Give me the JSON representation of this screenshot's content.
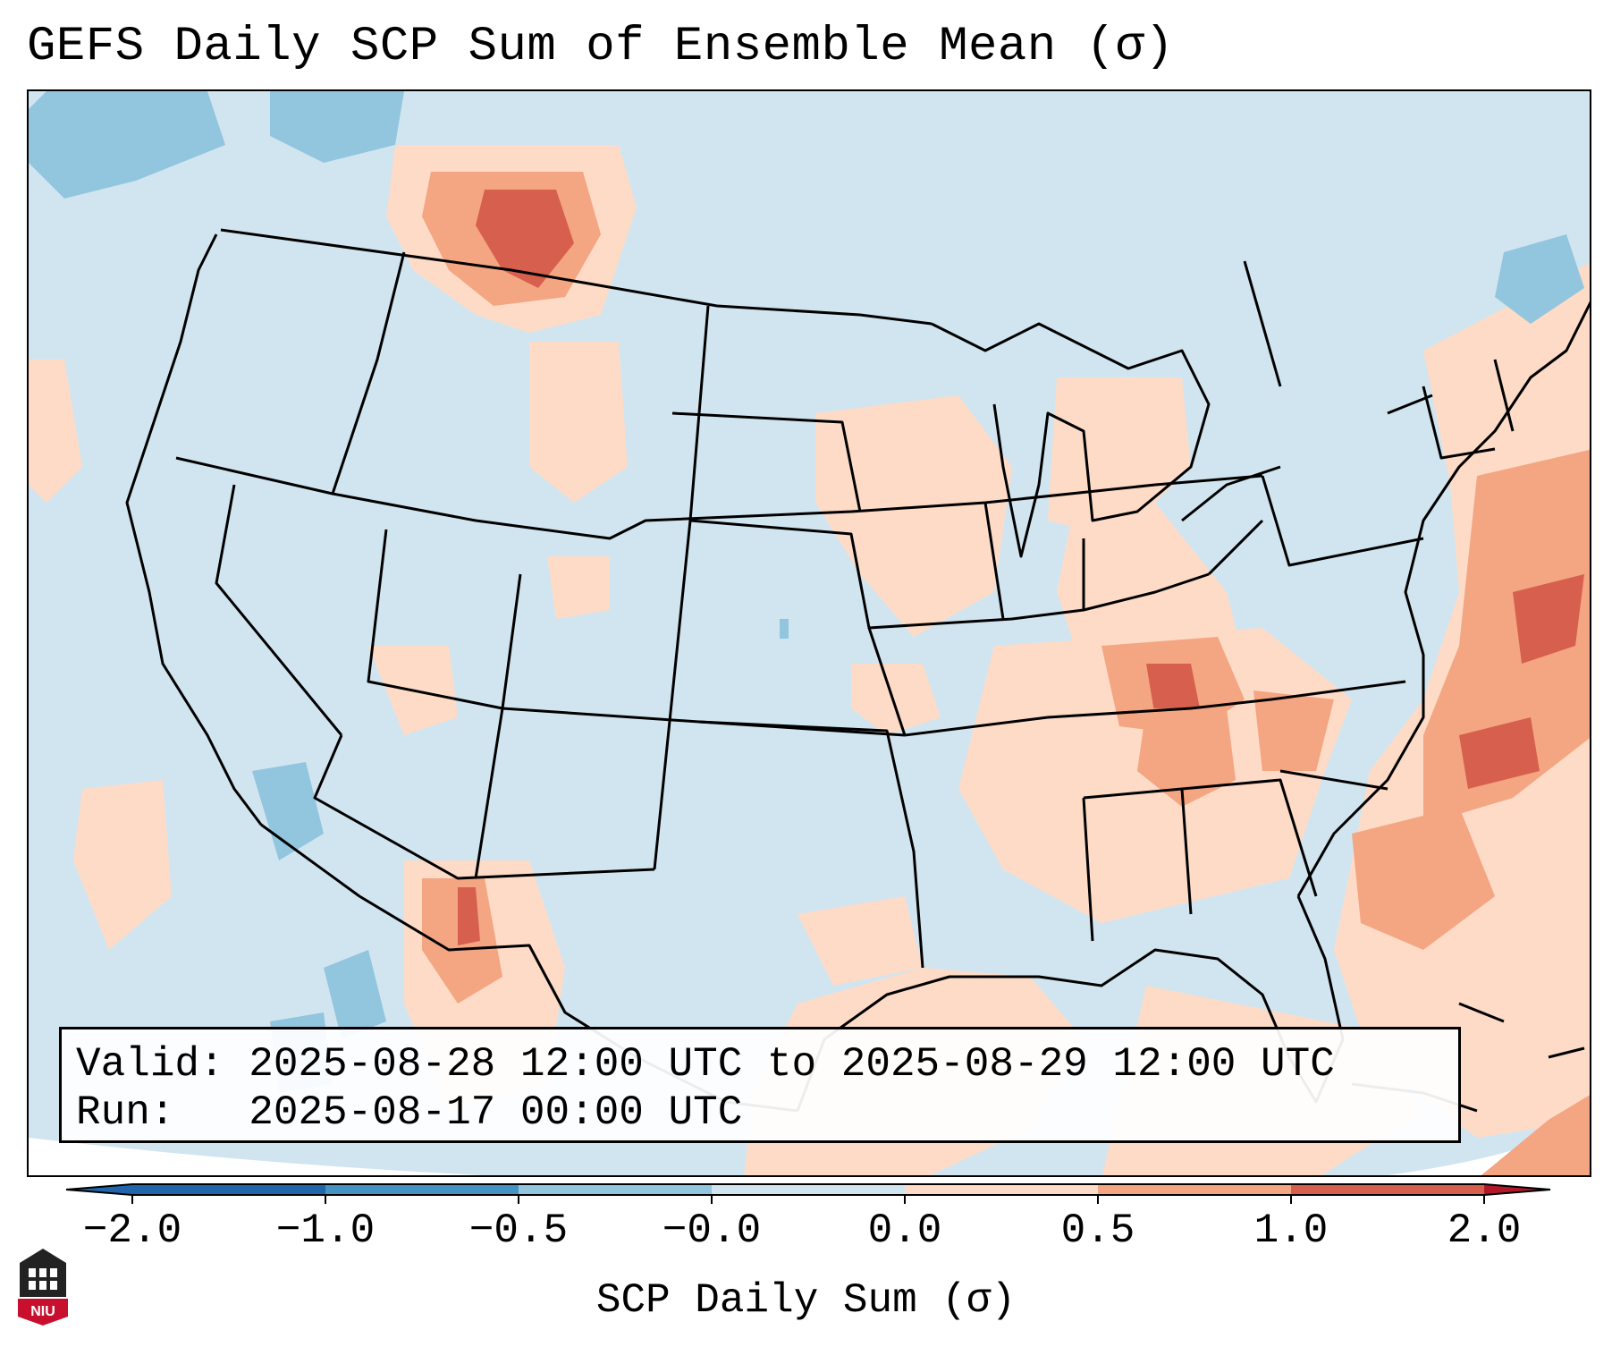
{
  "title": "GEFS Daily SCP Sum of Ensemble Mean (σ)",
  "valid_line": "Valid: 2025-08-28 12:00 UTC to 2025-08-29 12:00 UTC",
  "run_line": "Run:   2025-08-17 00:00 UTC",
  "colorbar": {
    "title": "SCP Daily Sum (σ)",
    "tick_labels": [
      "−2.0",
      "−1.0",
      "−0.5",
      "−0.0",
      "0.0",
      "0.5",
      "1.0",
      "2.0"
    ],
    "colors": [
      "#2166ac",
      "#4393c3",
      "#92c5de",
      "#d1e5f0",
      "#f7f7f7",
      "#fddbc7",
      "#f4a582",
      "#d6604d",
      "#b2182b"
    ]
  },
  "logo": {
    "text": "NIU",
    "color": "#c8102e"
  }
}
